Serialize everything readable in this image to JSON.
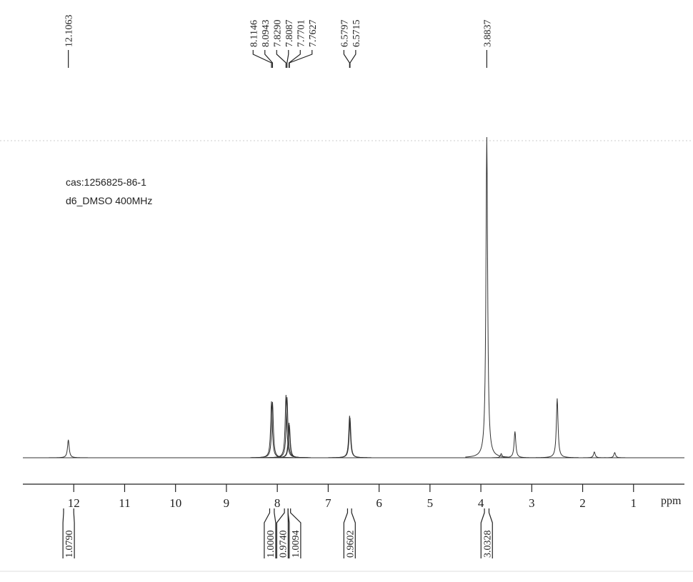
{
  "chart_data": {
    "type": "nmr",
    "annotations": [
      "cas:1256825-86-1",
      "d6_DMSO 400MHz"
    ],
    "x_label": "ppm",
    "xlim": [
      13,
      0
    ],
    "xticks": [
      12,
      11,
      10,
      9,
      8,
      7,
      6,
      5,
      4,
      3,
      2,
      1
    ],
    "ylim": [
      0,
      100
    ],
    "color": "#333333",
    "peak_picks": [
      {
        "value": 12.1063,
        "label": "12.1063"
      },
      {
        "value": 8.1146,
        "label": "8.1146"
      },
      {
        "value": 8.0943,
        "label": "8.0943"
      },
      {
        "value": 7.829,
        "label": "7.8290"
      },
      {
        "value": 7.8087,
        "label": "7.8087"
      },
      {
        "value": 7.7701,
        "label": "7.7701"
      },
      {
        "value": 7.7627,
        "label": "7.7627"
      },
      {
        "value": 6.5797,
        "label": "6.5797"
      },
      {
        "value": 6.5715,
        "label": "6.5715"
      },
      {
        "value": 3.8837,
        "label": "3.8837"
      }
    ],
    "peaks": [
      {
        "ppm": 12.1063,
        "height": 5.6
      },
      {
        "ppm": 8.1146,
        "height": 17.6
      },
      {
        "ppm": 8.0943,
        "height": 17.4
      },
      {
        "ppm": 7.829,
        "height": 19.6
      },
      {
        "ppm": 7.8087,
        "height": 18.9
      },
      {
        "ppm": 7.7701,
        "height": 10.9
      },
      {
        "ppm": 7.7627,
        "height": 10.2
      },
      {
        "ppm": 6.5797,
        "height": 13.1
      },
      {
        "ppm": 6.5715,
        "height": 12.5
      },
      {
        "ppm": 3.8837,
        "height": 100
      },
      {
        "ppm": 3.6,
        "height": 1.3
      },
      {
        "ppm": 3.33,
        "height": 8.2
      },
      {
        "ppm": 2.5,
        "height": 18.5
      },
      {
        "ppm": 1.77,
        "height": 1.8
      },
      {
        "ppm": 1.37,
        "height": 1.6
      }
    ],
    "integrals": [
      {
        "from": 12.2,
        "to": 12.0,
        "value": 1.079,
        "label": "1.0790"
      },
      {
        "from": 8.15,
        "to": 8.06,
        "value": 1,
        "label": "1.0000"
      },
      {
        "from": 7.86,
        "to": 7.79,
        "value": 0.974,
        "label": "0.9740"
      },
      {
        "from": 7.79,
        "to": 7.74,
        "value": 1.0094,
        "label": "1.0094"
      },
      {
        "from": 6.62,
        "to": 6.54,
        "value": 0.9602,
        "label": "0.9602"
      },
      {
        "from": 3.93,
        "to": 3.84,
        "value": 3.0328,
        "label": "3.0328"
      }
    ]
  }
}
